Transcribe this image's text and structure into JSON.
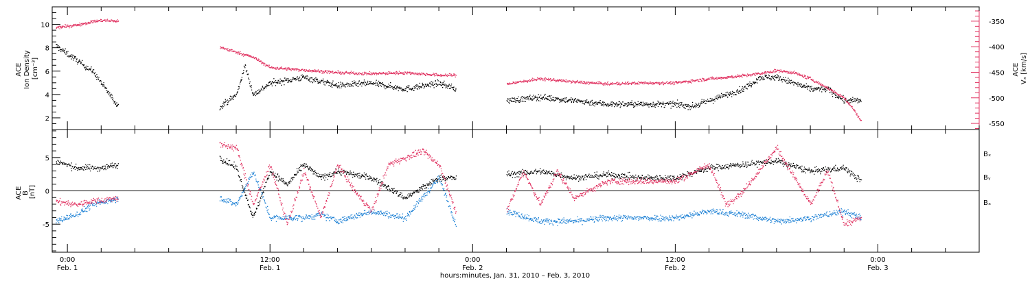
{
  "chart_data": [
    {
      "type": "scatter",
      "panel": "top",
      "left_axis": {
        "label_lines": [
          "ACE",
          "Ion Density",
          "[cm⁻³]"
        ],
        "ylim": [
          1,
          11.5
        ],
        "ticks": [
          2,
          4,
          6,
          8,
          10
        ],
        "tick_labels": [
          "2",
          "4",
          "6",
          "8",
          "10"
        ],
        "color": "#000000"
      },
      "right_axis": {
        "label_lines": [
          "ACE",
          "Vₓ [km/s]"
        ],
        "ylim": [
          -562,
          -322
        ],
        "ticks": [
          -550,
          -500,
          -450,
          -400,
          -350
        ],
        "tick_labels": [
          "-550",
          "-500",
          "-450",
          "-400",
          "-350"
        ],
        "color": "#e0305f"
      },
      "series": [
        {
          "axis": "left",
          "color": "#000000",
          "segments": [
            {
              "x": [
                -0.7,
                1.5,
                3.0
              ],
              "y": [
                8.2,
                6.0,
                3.0
              ]
            },
            {
              "x": [
                9.0,
                10.0,
                10.5,
                11.0,
                12.0,
                14.0,
                16.0,
                18.0,
                20.0,
                22.0,
                23.0
              ],
              "y": [
                3.0,
                4.0,
                6.5,
                4.0,
                5.0,
                5.5,
                4.8,
                5.0,
                4.5,
                5.0,
                4.5
              ]
            },
            {
              "x": [
                26.0,
                28.0,
                30.0,
                32.0,
                34.0,
                36.0,
                37.0,
                38.0,
                39.0,
                40.0,
                41.0,
                42.0,
                43.0,
                44.0,
                45.0,
                46.0,
                47.0
              ],
              "y": [
                3.5,
                3.8,
                3.5,
                3.2,
                3.2,
                3.2,
                3.0,
                3.5,
                4.0,
                4.5,
                5.5,
                5.5,
                5.0,
                4.5,
                4.5,
                3.5,
                3.5
              ]
            }
          ]
        },
        {
          "axis": "right",
          "color": "#e0305f",
          "segments": [
            {
              "x": [
                -0.7,
                0.5,
                1.5,
                2.0,
                3.0
              ],
              "y": [
                -362,
                -357,
                -350,
                -348,
                -349
              ]
            },
            {
              "x": [
                9.0,
                10.0,
                11.0,
                12.0,
                14.0,
                16.0,
                18.0,
                20.0,
                22.0,
                23.0
              ],
              "y": [
                -400,
                -410,
                -420,
                -440,
                -445,
                -450,
                -452,
                -450,
                -455,
                -455
              ]
            },
            {
              "x": [
                26.0,
                28.0,
                30.0,
                32.0,
                34.0,
                36.0,
                38.0,
                40.0,
                41.0,
                42.0,
                43.0,
                44.0,
                45.0,
                46.0,
                46.5,
                47.0
              ],
              "y": [
                -472,
                -462,
                -468,
                -472,
                -470,
                -470,
                -462,
                -456,
                -452,
                -446,
                -450,
                -462,
                -480,
                -500,
                -520,
                -545
              ]
            }
          ]
        }
      ]
    },
    {
      "type": "scatter",
      "panel": "bottom",
      "left_axis": {
        "label_lines": [
          "ACE",
          "B",
          "[nT]"
        ],
        "ylim": [
          -9.2,
          9.2
        ],
        "ticks": [
          -5,
          0,
          5
        ],
        "tick_labels": [
          "-5",
          "0",
          "5"
        ],
        "color": "#000000"
      },
      "zero_line": true,
      "legend": {
        "placement": "right"
      },
      "series": [
        {
          "name": "Bₓ",
          "color": "#000000",
          "segments": [
            {
              "x": [
                -0.7,
                0.5,
                2.0,
                3.0
              ],
              "y": [
                4.5,
                3.5,
                3.5,
                4.0
              ]
            },
            {
              "x": [
                9.0,
                10.0,
                11.0,
                12.0,
                13.0,
                14.0,
                15.0,
                16.0,
                18.0,
                20.0,
                22.0,
                23.0
              ],
              "y": [
                5.0,
                3.5,
                -4.0,
                3.0,
                1.0,
                4.0,
                2.0,
                3.0,
                2.0,
                -1.0,
                2.0,
                2.0
              ]
            },
            {
              "x": [
                26.0,
                28.0,
                30.0,
                32.0,
                34.0,
                36.0,
                38.0,
                40.0,
                42.0,
                44.0,
                46.0,
                47.0
              ],
              "y": [
                2.5,
                3.0,
                2.0,
                2.5,
                2.0,
                2.0,
                3.5,
                4.0,
                4.5,
                3.0,
                3.5,
                1.5
              ]
            }
          ]
        },
        {
          "name": "Bᵧ",
          "color": "#1a7fd4",
          "segments": [
            {
              "x": [
                -0.7,
                0.5,
                1.5,
                3.0
              ],
              "y": [
                -4.5,
                -3.5,
                -2.0,
                -1.0
              ]
            },
            {
              "x": [
                9.0,
                10.0,
                11.0,
                12.0,
                13.0,
                14.0,
                15.0,
                16.0,
                18.0,
                20.0,
                22.0,
                23.0
              ],
              "y": [
                -1.0,
                -2.0,
                3.0,
                -4.0,
                -4.0,
                -4.0,
                -3.5,
                -4.5,
                -3.0,
                -4.0,
                2.0,
                -5.0
              ]
            },
            {
              "x": [
                26.0,
                28.0,
                30.0,
                32.0,
                34.0,
                36.0,
                38.0,
                40.0,
                42.0,
                44.0,
                46.0,
                47.0
              ],
              "y": [
                -3.0,
                -4.5,
                -4.5,
                -4.0,
                -4.0,
                -4.0,
                -3.0,
                -3.5,
                -4.5,
                -4.0,
                -3.0,
                -4.0
              ]
            }
          ]
        },
        {
          "name": "Bₓ",
          "color": "#e0305f",
          "segments": [
            {
              "x": [
                -0.7,
                0.5,
                1.5,
                3.0
              ],
              "y": [
                -1.5,
                -2.0,
                -1.5,
                -1.0
              ]
            },
            {
              "x": [
                9.0,
                10.0,
                11.0,
                12.0,
                13.0,
                14.0,
                15.0,
                16.0,
                17.0,
                18.0,
                19.0,
                20.0,
                21.0,
                22.0,
                23.0
              ],
              "y": [
                7.0,
                6.5,
                -2.0,
                4.0,
                -5.0,
                3.0,
                -4.0,
                4.0,
                0.0,
                -3.0,
                4.0,
                5.0,
                6.0,
                4.0,
                -3.0
              ]
            },
            {
              "x": [
                26.0,
                27.0,
                28.0,
                29.0,
                30.0,
                32.0,
                34.0,
                36.0,
                38.0,
                39.0,
                40.0,
                42.0,
                44.0,
                45.0,
                46.0,
                47.0
              ],
              "y": [
                -3.0,
                3.0,
                -2.0,
                3.0,
                -1.0,
                1.5,
                1.5,
                1.5,
                4.0,
                -2.0,
                0.0,
                6.5,
                -2.0,
                3.0,
                -5.0,
                -4.0
              ]
            }
          ]
        }
      ]
    }
  ],
  "x_axis": {
    "range_hours": [
      -0.9,
      54.0
    ],
    "major_ticks": [
      0,
      12,
      24,
      36,
      48
    ],
    "time_labels": [
      "0:00",
      "12:00",
      "0:00",
      "12:00",
      "0:00"
    ],
    "date_labels": [
      "Feb. 1",
      "Feb. 1",
      "Feb. 2",
      "Feb. 2",
      "Feb. 3"
    ],
    "title": "hours:minutes, Jan. 31, 2010 – Feb.  3, 2010"
  },
  "legend_items": [
    "Bₓ",
    "Bᵧ",
    "Bₓ"
  ]
}
